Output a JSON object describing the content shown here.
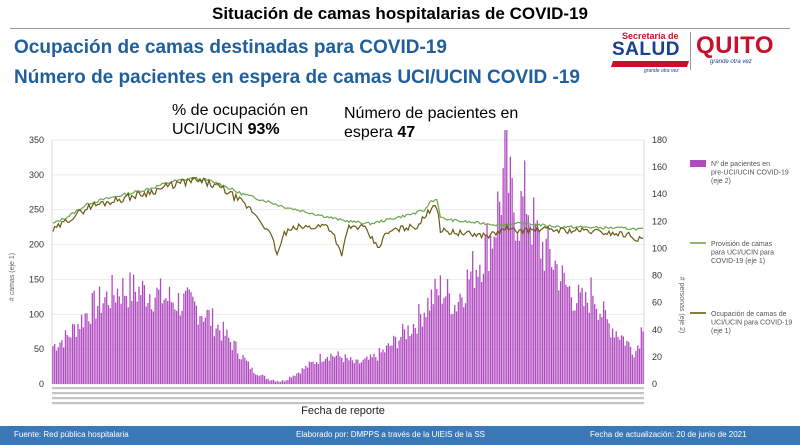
{
  "header": {
    "title": "Situación de camas hospitalarias de COVID-19",
    "heading1": "Ocupación de camas destinadas para COVID-19",
    "heading2": "Número de pacientes en espera de camas UCI/UCIN COVID -19"
  },
  "logos": {
    "salud_small": "Secretaría de",
    "salud_name": "SALUD",
    "salud_tag": "grande otra vez",
    "quito_name": "QUITO",
    "quito_tag": "grande otra vez"
  },
  "kpis": {
    "occupancy_label": "% de ocupación en UCI/UCIN",
    "occupancy_value": "93%",
    "waiting_label": "Número de pacientes en espera",
    "waiting_value": "47"
  },
  "footer": {
    "source": "Fuente: Red pública hospitalaria",
    "made_by": "Elaborado por: DMPPS a través de la UIEIS de la SS",
    "updated": "Fecha de actualización: 20 de junio de 2021"
  },
  "colors": {
    "bars": "#b04ac0",
    "provision": "#6aa84f",
    "occupancy": "#6b5a16",
    "heading": "#1f5f9c",
    "footer": "#3a78b8"
  },
  "chart_data": {
    "type": "bar",
    "xlabel": "Fecha de reporte",
    "ylabel_left": "# camas (eje 1)",
    "ylabel_right": "# personas (eje 2)",
    "ylim_left": [
      0,
      350
    ],
    "ylim_right": [
      0,
      180
    ],
    "yticks_left": [
      0,
      50,
      100,
      150,
      200,
      250,
      300,
      350
    ],
    "yticks_right": [
      0,
      20,
      40,
      60,
      80,
      100,
      120,
      140,
      160,
      180
    ],
    "n_points": 330,
    "grid": true,
    "legend_position": "right",
    "series": [
      {
        "name": "Nº de pacientes en pre-UCI/UCIN COVID-19 (eje 2)",
        "type": "bar",
        "axis": "right",
        "keypoints": [
          [
            0,
            28
          ],
          [
            10,
            35
          ],
          [
            25,
            55
          ],
          [
            45,
            70
          ],
          [
            65,
            68
          ],
          [
            80,
            62
          ],
          [
            95,
            58
          ],
          [
            105,
            50
          ],
          [
            115,
            38
          ],
          [
            125,
            25
          ],
          [
            135,
            10
          ],
          [
            145,
            4
          ],
          [
            155,
            2
          ],
          [
            165,
            8
          ],
          [
            175,
            15
          ],
          [
            185,
            22
          ],
          [
            195,
            20
          ],
          [
            205,
            15
          ],
          [
            215,
            18
          ],
          [
            225,
            25
          ],
          [
            235,
            35
          ],
          [
            245,
            45
          ],
          [
            255,
            62
          ],
          [
            262,
            70
          ],
          [
            268,
            65
          ],
          [
            272,
            58
          ],
          [
            276,
            68
          ],
          [
            282,
            80
          ],
          [
            290,
            95
          ],
          [
            297,
            110
          ],
          [
            303,
            140
          ],
          [
            306,
            163
          ],
          [
            310,
            135
          ],
          [
            315,
            125
          ],
          [
            320,
            140
          ],
          [
            324,
            120
          ],
          [
            328,
            105
          ],
          [
            332,
            100
          ],
          [
            336,
            95
          ],
          [
            340,
            88
          ],
          [
            345,
            75
          ],
          [
            350,
            68
          ],
          [
            355,
            62
          ],
          [
            360,
            58
          ],
          [
            365,
            70
          ],
          [
            370,
            55
          ],
          [
            375,
            45
          ],
          [
            380,
            40
          ],
          [
            385,
            35
          ],
          [
            390,
            28
          ],
          [
            394,
            24
          ],
          [
            397,
            35
          ],
          [
            399,
            47
          ]
        ]
      },
      {
        "name": "Provisión de camas para UCI/UCIN para COVID-19 (eje 1)",
        "type": "line",
        "axis": "left",
        "keypoints": [
          [
            0,
            230
          ],
          [
            10,
            240
          ],
          [
            25,
            260
          ],
          [
            45,
            270
          ],
          [
            65,
            280
          ],
          [
            80,
            290
          ],
          [
            95,
            295
          ],
          [
            105,
            292
          ],
          [
            115,
            285
          ],
          [
            125,
            275
          ],
          [
            135,
            268
          ],
          [
            145,
            262
          ],
          [
            155,
            255
          ],
          [
            165,
            250
          ],
          [
            175,
            245
          ],
          [
            185,
            240
          ],
          [
            195,
            235
          ],
          [
            205,
            232
          ],
          [
            215,
            230
          ],
          [
            225,
            235
          ],
          [
            235,
            240
          ],
          [
            245,
            245
          ],
          [
            252,
            250
          ],
          [
            255,
            262
          ],
          [
            260,
            265
          ],
          [
            262,
            238
          ],
          [
            270,
            235
          ],
          [
            282,
            232
          ],
          [
            294,
            230
          ],
          [
            302,
            228
          ],
          [
            310,
            230
          ],
          [
            320,
            230
          ],
          [
            330,
            228
          ],
          [
            340,
            226
          ],
          [
            350,
            225
          ],
          [
            360,
            225
          ],
          [
            370,
            224
          ],
          [
            380,
            224
          ],
          [
            390,
            223
          ],
          [
            399,
            222
          ]
        ]
      },
      {
        "name": "Ocupación de camas de UCI/UCIN para COVID-19 (eje 1)",
        "type": "line",
        "axis": "left",
        "keypoints": [
          [
            0,
            220
          ],
          [
            10,
            235
          ],
          [
            25,
            255
          ],
          [
            45,
            265
          ],
          [
            65,
            275
          ],
          [
            80,
            285
          ],
          [
            95,
            292
          ],
          [
            105,
            288
          ],
          [
            115,
            280
          ],
          [
            125,
            265
          ],
          [
            135,
            248
          ],
          [
            142,
            230
          ],
          [
            148,
            210
          ],
          [
            152,
            185
          ],
          [
            156,
            215
          ],
          [
            165,
            225
          ],
          [
            175,
            225
          ],
          [
            185,
            228
          ],
          [
            190,
            215
          ],
          [
            195,
            185
          ],
          [
            200,
            225
          ],
          [
            210,
            225
          ],
          [
            220,
            195
          ],
          [
            225,
            215
          ],
          [
            230,
            220
          ],
          [
            240,
            225
          ],
          [
            245,
            225
          ],
          [
            252,
            240
          ],
          [
            257,
            258
          ],
          [
            260,
            255
          ],
          [
            262,
            220
          ],
          [
            270,
            218
          ],
          [
            282,
            215
          ],
          [
            294,
            213
          ],
          [
            302,
            218
          ],
          [
            306,
            225
          ],
          [
            310,
            220
          ],
          [
            320,
            220
          ],
          [
            330,
            222
          ],
          [
            340,
            221
          ],
          [
            350,
            220
          ],
          [
            360,
            220
          ],
          [
            370,
            218
          ],
          [
            380,
            216
          ],
          [
            390,
            214
          ],
          [
            395,
            208
          ],
          [
            399,
            208
          ]
        ]
      }
    ]
  }
}
